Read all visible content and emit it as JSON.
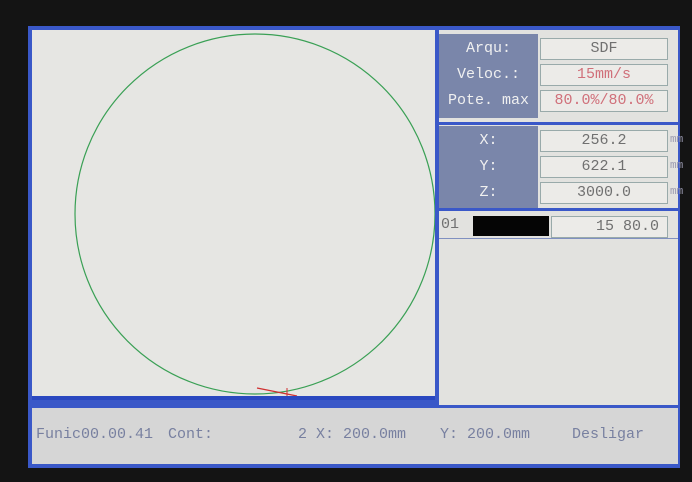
{
  "params": [
    {
      "label": "Arqu:",
      "value": "SDF"
    },
    {
      "label": "Veloc.:",
      "value": "15mm/s"
    },
    {
      "label": "Pote. max",
      "value": "80.0%/80.0%"
    }
  ],
  "coords": [
    {
      "label": "X:",
      "value": "256.2",
      "unit": "mm"
    },
    {
      "label": "Y:",
      "value": "622.1",
      "unit": "mm"
    },
    {
      "label": "Z:",
      "value": "3000.0",
      "unit": "mm"
    }
  ],
  "layers": [
    {
      "id": "01",
      "values": "15 80.0"
    }
  ],
  "status": {
    "time": "Funic00.00.41",
    "count_label": "Cont:",
    "count": "2",
    "x": "X: 200.0mm",
    "y": "Y: 200.0mm",
    "action": "Desligar"
  }
}
